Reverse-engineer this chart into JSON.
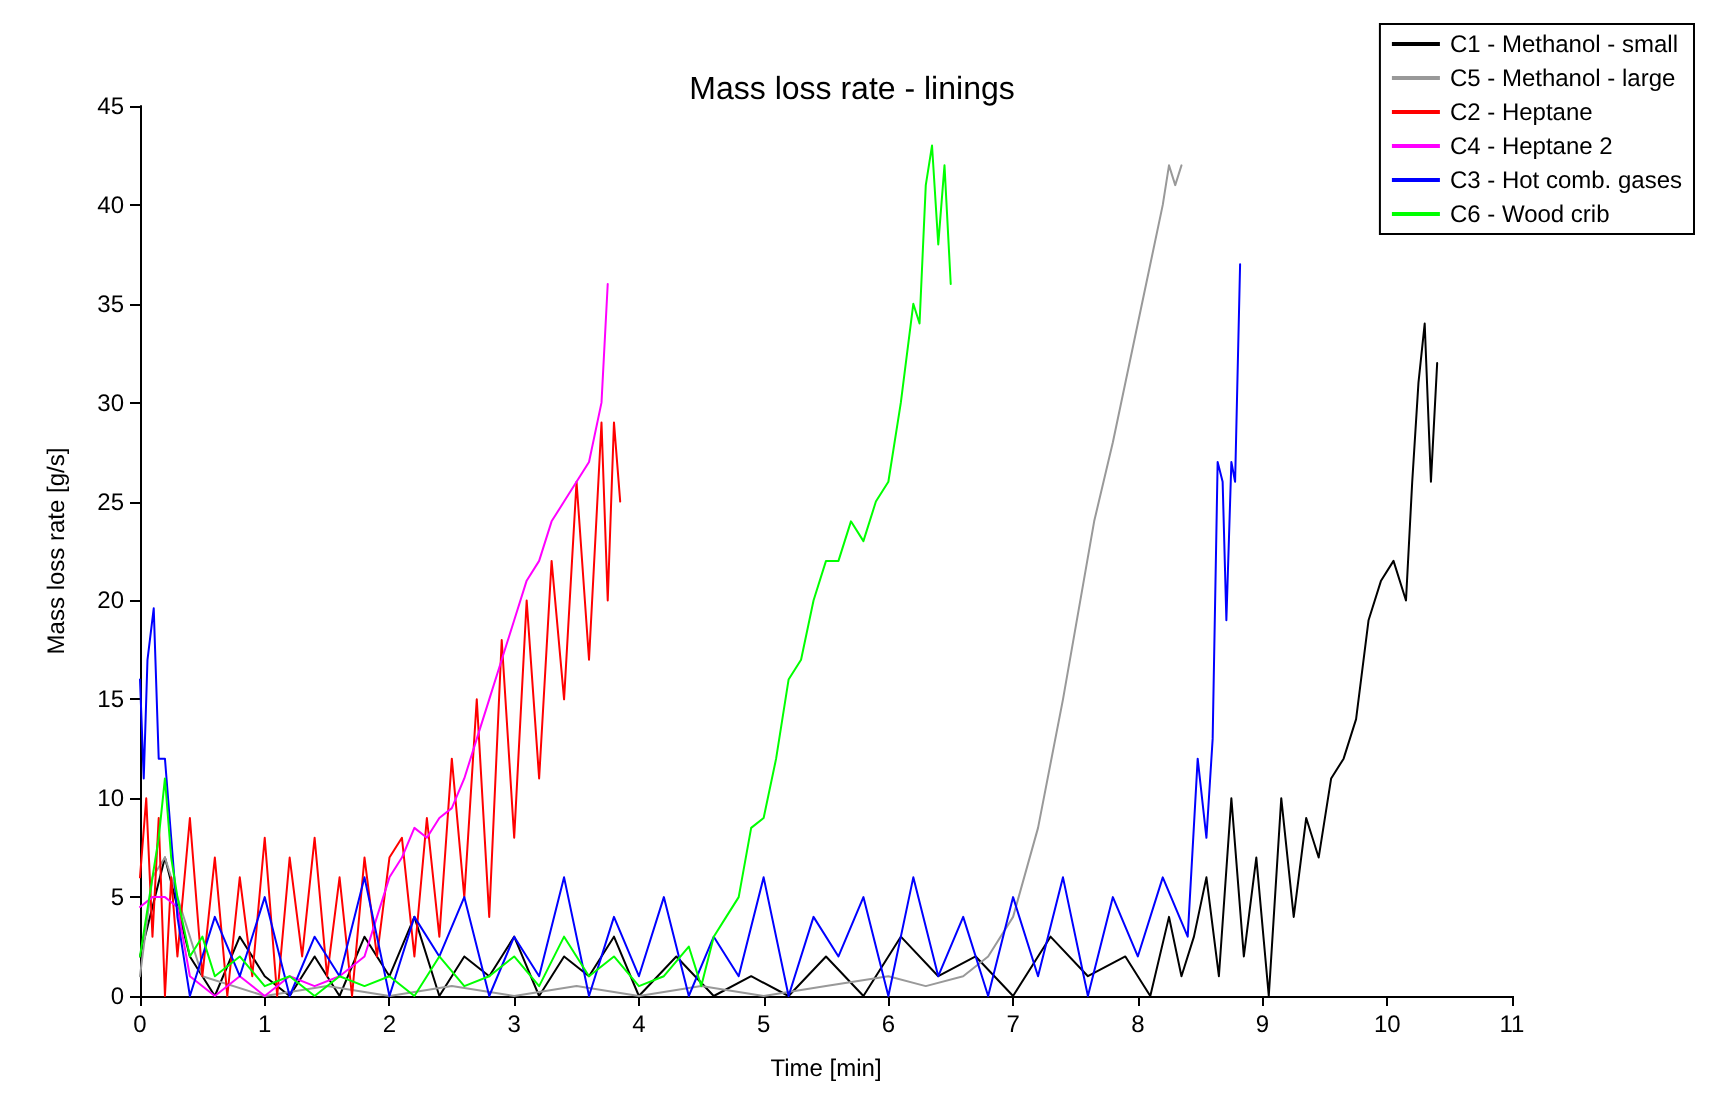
{
  "chart_data": {
    "type": "line",
    "title": "Mass loss rate - linings",
    "xlabel": "Time [min]",
    "ylabel": "Mass loss rate [g/s]",
    "xlim": [
      0,
      11
    ],
    "xticks": [
      0,
      1,
      2,
      3,
      4,
      5,
      6,
      7,
      8,
      9,
      10,
      11
    ],
    "ylim": [
      0,
      45
    ],
    "yticks": [
      0,
      5,
      10,
      15,
      20,
      25,
      30,
      35,
      40,
      45
    ],
    "grid": false,
    "legend": "top right",
    "marker": "none",
    "line_style": "solid",
    "series": [
      {
        "name": "C1 - Methanol - small",
        "color": "#000000",
        "x": [
          0,
          0.2,
          0.4,
          0.6,
          0.8,
          1.0,
          1.2,
          1.4,
          1.6,
          1.8,
          2.0,
          2.2,
          2.4,
          2.6,
          2.8,
          3.0,
          3.2,
          3.4,
          3.6,
          3.8,
          4.0,
          4.3,
          4.6,
          4.9,
          5.2,
          5.5,
          5.8,
          6.1,
          6.4,
          6.7,
          7.0,
          7.3,
          7.6,
          7.9,
          8.1,
          8.25,
          8.35,
          8.45,
          8.55,
          8.65,
          8.75,
          8.85,
          8.95,
          9.05,
          9.15,
          9.25,
          9.35,
          9.45,
          9.55,
          9.65,
          9.75,
          9.85,
          9.95,
          10.05,
          10.15,
          10.2,
          10.25,
          10.3,
          10.35,
          10.4
        ],
        "values": [
          2,
          7,
          2,
          0,
          3,
          1,
          0,
          2,
          0,
          3,
          1,
          4,
          0,
          2,
          1,
          3,
          0,
          2,
          1,
          3,
          0,
          2,
          0,
          1,
          0,
          2,
          0,
          3,
          1,
          2,
          0,
          3,
          1,
          2,
          0,
          4,
          1,
          3,
          6,
          1,
          10,
          2,
          7,
          0,
          10,
          4,
          9,
          7,
          11,
          12,
          14,
          19,
          21,
          22,
          20,
          26,
          31,
          34,
          26,
          32
        ]
      },
      {
        "name": "C5 - Methanol - large",
        "color": "#999999",
        "x": [
          0,
          0.1,
          0.2,
          0.5,
          1,
          1.5,
          2,
          2.5,
          3,
          3.5,
          4,
          4.5,
          5,
          5.5,
          6,
          6.3,
          6.6,
          6.8,
          7.0,
          7.2,
          7.4,
          7.65,
          7.8,
          8.0,
          8.1,
          8.2,
          8.25,
          8.3,
          8.35
        ],
        "values": [
          1,
          6,
          7,
          1,
          0,
          0.5,
          0,
          0.5,
          0,
          0.5,
          0,
          0.5,
          0,
          0.5,
          1,
          0.5,
          1,
          2,
          4,
          8.5,
          15,
          24,
          28,
          34,
          37,
          40,
          42,
          41,
          42
        ]
      },
      {
        "name": "C2 - Heptane",
        "color": "#ff0000",
        "x": [
          0,
          0.05,
          0.1,
          0.15,
          0.2,
          0.25,
          0.3,
          0.4,
          0.5,
          0.6,
          0.7,
          0.8,
          0.9,
          1.0,
          1.1,
          1.2,
          1.3,
          1.4,
          1.5,
          1.6,
          1.7,
          1.8,
          1.9,
          2.0,
          2.1,
          2.2,
          2.3,
          2.4,
          2.5,
          2.6,
          2.7,
          2.8,
          2.9,
          3.0,
          3.1,
          3.2,
          3.3,
          3.4,
          3.5,
          3.6,
          3.7,
          3.75,
          3.8,
          3.85
        ],
        "values": [
          6,
          10,
          3,
          9,
          0,
          6,
          2,
          9,
          1,
          7,
          0,
          6,
          1,
          8,
          0,
          7,
          2,
          8,
          1,
          6,
          0,
          7,
          2,
          7,
          8,
          2,
          9,
          3,
          12,
          5,
          15,
          4,
          18,
          8,
          20,
          11,
          22,
          15,
          26,
          17,
          29,
          20,
          29,
          25
        ]
      },
      {
        "name": "C4 - Heptane 2",
        "color": "#ff00ff",
        "x": [
          0,
          0.1,
          0.2,
          0.3,
          0.4,
          0.6,
          0.8,
          1.0,
          1.2,
          1.4,
          1.6,
          1.8,
          1.9,
          2.0,
          2.1,
          2.2,
          2.3,
          2.4,
          2.5,
          2.6,
          2.7,
          2.8,
          2.9,
          3.0,
          3.1,
          3.2,
          3.3,
          3.4,
          3.5,
          3.6,
          3.7,
          3.75
        ],
        "values": [
          4.5,
          5,
          5,
          4.5,
          1,
          0,
          1,
          0,
          1,
          0.5,
          1,
          2,
          4,
          6,
          7,
          8.5,
          8,
          9,
          9.5,
          11,
          13,
          15,
          17,
          19,
          21,
          22,
          24,
          25,
          26,
          27,
          30,
          36
        ]
      },
      {
        "name": "C3 - Hot comb. gases",
        "color": "#0000ff",
        "x": [
          0,
          0.03,
          0.06,
          0.11,
          0.15,
          0.2,
          0.25,
          0.3,
          0.4,
          0.6,
          0.8,
          1.0,
          1.2,
          1.4,
          1.6,
          1.8,
          2.0,
          2.2,
          2.4,
          2.6,
          2.8,
          3.0,
          3.2,
          3.4,
          3.6,
          3.8,
          4.0,
          4.2,
          4.4,
          4.6,
          4.8,
          5.0,
          5.2,
          5.4,
          5.6,
          5.8,
          6.0,
          6.2,
          6.4,
          6.6,
          6.8,
          7.0,
          7.2,
          7.4,
          7.6,
          7.8,
          8.0,
          8.2,
          8.4,
          8.48,
          8.55,
          8.6,
          8.64,
          8.68,
          8.71,
          8.75,
          8.78,
          8.82
        ],
        "values": [
          16,
          11,
          17,
          19.6,
          12,
          12,
          8,
          4,
          0,
          4,
          1,
          5,
          0,
          3,
          1,
          6,
          0,
          4,
          2,
          5,
          0,
          3,
          1,
          6,
          0,
          4,
          1,
          5,
          0,
          3,
          1,
          6,
          0,
          4,
          2,
          5,
          0,
          6,
          1,
          4,
          0,
          5,
          1,
          6,
          0,
          5,
          2,
          6,
          3,
          12,
          8,
          13,
          27,
          26,
          19,
          27,
          26,
          37
        ]
      },
      {
        "name": "C6 - Wood crib",
        "color": "#00ff00",
        "x": [
          0,
          0.1,
          0.15,
          0.2,
          0.25,
          0.3,
          0.4,
          0.5,
          0.6,
          0.8,
          1.0,
          1.2,
          1.4,
          1.6,
          1.8,
          2.0,
          2.2,
          2.4,
          2.6,
          2.8,
          3.0,
          3.2,
          3.4,
          3.6,
          3.8,
          4.0,
          4.2,
          4.4,
          4.5,
          4.6,
          4.7,
          4.8,
          4.9,
          5.0,
          5.1,
          5.2,
          5.3,
          5.4,
          5.5,
          5.6,
          5.7,
          5.8,
          5.9,
          6.0,
          6.1,
          6.2,
          6.25,
          6.3,
          6.35,
          6.4,
          6.45,
          6.5
        ],
        "values": [
          2,
          6,
          8,
          11,
          7,
          5,
          2,
          3,
          1,
          2,
          0.5,
          1,
          0,
          1,
          0.5,
          1,
          0,
          2,
          0.5,
          1,
          2,
          0.5,
          3,
          1,
          2,
          0.5,
          1,
          2.5,
          0.5,
          3,
          4,
          5,
          8.5,
          9,
          12,
          16,
          17,
          20,
          22,
          22,
          24,
          23,
          25,
          26,
          30,
          35,
          34,
          41,
          43,
          38,
          42,
          36
        ]
      }
    ]
  }
}
